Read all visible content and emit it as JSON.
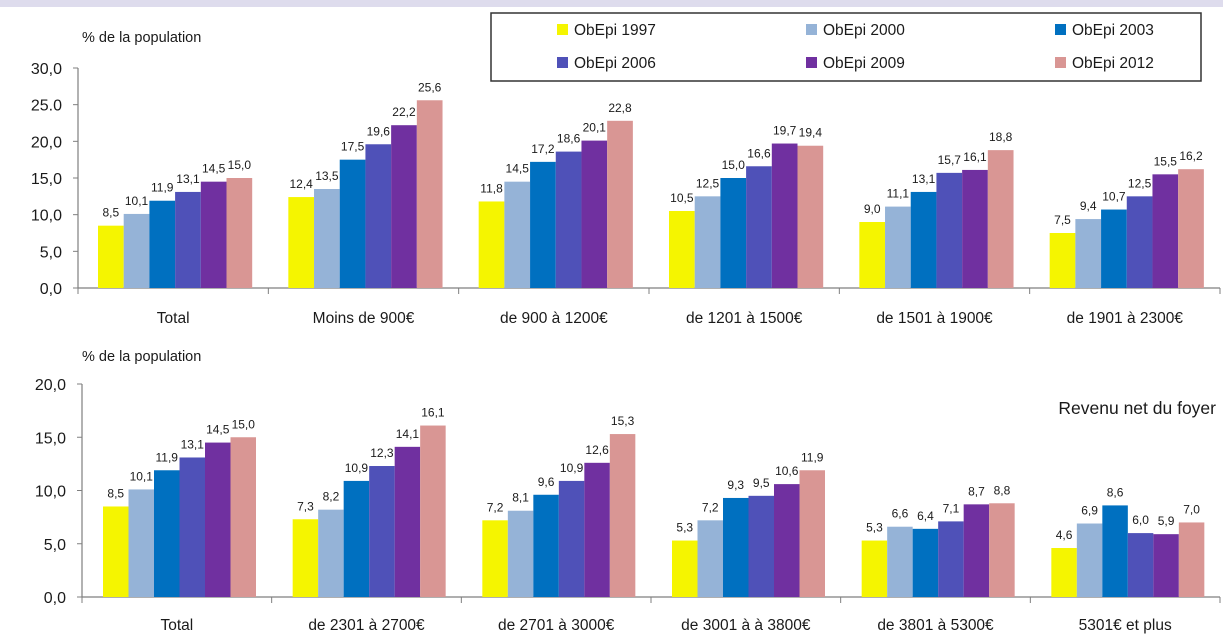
{
  "chart_data": [
    {
      "type": "bar",
      "title": "",
      "xlabel": "",
      "ylabel": "% de la population",
      "ylim": [
        0,
        30
      ],
      "yticks": [
        0,
        5,
        10,
        15,
        20,
        25,
        30
      ],
      "ytick_labels": [
        "0,0",
        "5,0",
        "10,0",
        "15,0",
        "20,0",
        "25.0",
        "30,0"
      ],
      "grid": false,
      "legend": "top-right",
      "categories": [
        "Total",
        "Moins de 900€",
        "de 900 à 1200€",
        "de 1201 à 1500€",
        "de 1501 à 1900€",
        "de 1901 à 2300€"
      ],
      "series": [
        {
          "name": "ObEpi 1997",
          "color": "#F5F500",
          "values": [
            8.5,
            12.4,
            11.8,
            10.5,
            9.0,
            7.5
          ]
        },
        {
          "name": "ObEpi 2000",
          "color": "#95B3D7",
          "values": [
            10.1,
            13.5,
            14.5,
            12.5,
            11.1,
            9.4
          ]
        },
        {
          "name": "ObEpi 2003",
          "color": "#0070C0",
          "values": [
            11.9,
            17.5,
            17.2,
            15.0,
            13.1,
            10.7
          ]
        },
        {
          "name": "ObEpi 2006",
          "color": "#4F51B8",
          "values": [
            13.1,
            19.6,
            18.6,
            16.6,
            15.7,
            12.5
          ]
        },
        {
          "name": "ObEpi 2009",
          "color": "#7030A0",
          "values": [
            14.5,
            22.2,
            20.1,
            19.7,
            16.1,
            15.5
          ]
        },
        {
          "name": "ObEpi 2012",
          "color": "#D99694",
          "values": [
            15.0,
            25.6,
            22.8,
            19.4,
            18.8,
            16.2
          ]
        }
      ]
    },
    {
      "type": "bar",
      "title": "",
      "xlabel": "",
      "ylabel": "% de la population",
      "ylim": [
        0,
        20
      ],
      "yticks": [
        0,
        5,
        10,
        15,
        20
      ],
      "ytick_labels": [
        "0,0",
        "5,0",
        "10,0",
        "15,0",
        "20,0"
      ],
      "grid": false,
      "annotation": "Revenu net du foyer",
      "categories": [
        "Total",
        "de 2301 à 2700€",
        "de 2701 à 3000€",
        "de 3001 à à 3800€",
        "de 3801 à 5300€",
        "5301€ et plus"
      ],
      "series": [
        {
          "name": "ObEpi 1997",
          "color": "#F5F500",
          "values": [
            8.5,
            7.3,
            7.2,
            5.3,
            5.3,
            4.6
          ]
        },
        {
          "name": "ObEpi 2000",
          "color": "#95B3D7",
          "values": [
            10.1,
            8.2,
            8.1,
            7.2,
            6.6,
            6.9
          ]
        },
        {
          "name": "ObEpi 2003",
          "color": "#0070C0",
          "values": [
            11.9,
            10.9,
            9.6,
            9.3,
            6.4,
            8.6
          ]
        },
        {
          "name": "ObEpi 2006",
          "color": "#4F51B8",
          "values": [
            13.1,
            12.3,
            10.9,
            9.5,
            7.1,
            6.0
          ]
        },
        {
          "name": "ObEpi 2009",
          "color": "#7030A0",
          "values": [
            14.5,
            14.1,
            12.6,
            10.6,
            8.7,
            5.9
          ]
        },
        {
          "name": "ObEpi 2012",
          "color": "#D99694",
          "values": [
            15.0,
            16.1,
            15.3,
            11.9,
            8.8,
            7.0
          ]
        }
      ]
    }
  ]
}
